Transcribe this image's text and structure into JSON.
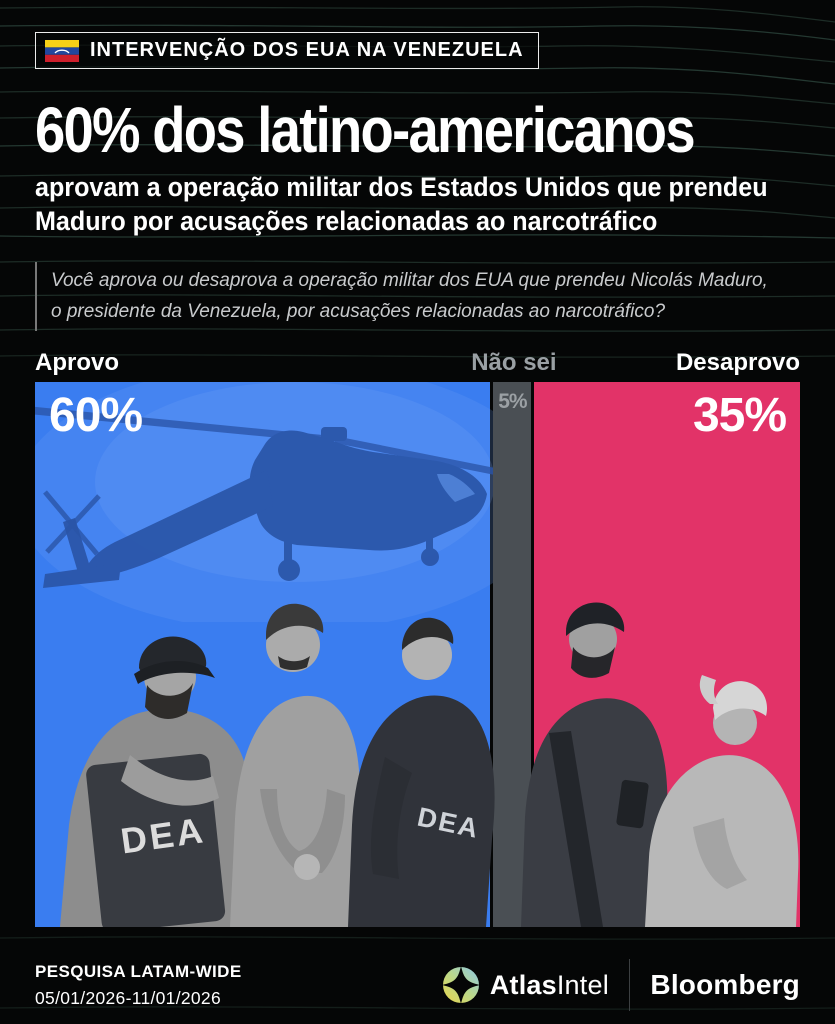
{
  "badge": {
    "label": "INTERVENÇÃO DOS EUA NA VENEZUELA"
  },
  "headline": "60% dos latino-americanos",
  "subheadline": [
    "aprovam a operação militar dos Estados Unidos que prendeu",
    "Maduro por acusações relacionadas ao narcotráfico"
  ],
  "question": [
    "Você aprova ou desaprova a operação militar dos EUA que prendeu Nicolás Maduro,",
    "o presidente da Venezuela, por acusações relacionadas ao narcotráfico?"
  ],
  "chart_data": {
    "type": "bar",
    "orientation": "horizontal-stacked",
    "title": "60% dos latino-americanos aprovam a operação militar dos Estados Unidos que prendeu Maduro por acusações relacionadas ao narcotráfico",
    "categories": [
      "Aprovo",
      "Não sei",
      "Desaprovo"
    ],
    "values": [
      60,
      5,
      35
    ],
    "display_values": [
      "60%",
      "5%",
      "35%"
    ],
    "colors": [
      "#3a7df0",
      "#4a4f54",
      "#e23368"
    ],
    "unit": "percent",
    "legend_position": "above-bar",
    "grid": false
  },
  "illustration": {
    "dea_text": "DEA"
  },
  "footer": {
    "survey_name": "PESQUISA LATAM-WIDE",
    "date_range": "05/01/2026-11/01/2026",
    "atlasintel": {
      "bold": "Atlas",
      "regular": "Intel"
    },
    "bloomberg": "Bloomberg"
  }
}
